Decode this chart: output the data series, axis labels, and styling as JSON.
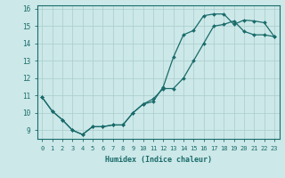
{
  "xlabel": "Humidex (Indice chaleur)",
  "background_color": "#cce8e8",
  "grid_color": "#aacccc",
  "line_color": "#1a6b6b",
  "xlim": [
    -0.5,
    23.5
  ],
  "ylim": [
    8.5,
    16.2
  ],
  "yticks": [
    9,
    10,
    11,
    12,
    13,
    14,
    15,
    16
  ],
  "xticks": [
    0,
    1,
    2,
    3,
    4,
    5,
    6,
    7,
    8,
    9,
    10,
    11,
    12,
    13,
    14,
    15,
    16,
    17,
    18,
    19,
    20,
    21,
    22,
    23
  ],
  "line1_x": [
    0,
    1,
    2,
    3,
    4,
    5,
    6,
    7,
    8,
    9,
    10,
    11,
    12,
    13,
    14,
    15,
    16,
    17,
    18,
    19,
    20,
    21,
    22,
    23
  ],
  "line1_y": [
    10.9,
    10.1,
    9.6,
    9.0,
    8.75,
    9.2,
    9.2,
    9.3,
    9.3,
    10.0,
    10.5,
    10.65,
    11.5,
    13.2,
    14.5,
    14.75,
    15.6,
    15.7,
    15.7,
    15.1,
    15.35,
    15.3,
    15.2,
    14.4
  ],
  "line2_x": [
    0,
    1,
    2,
    3,
    4,
    5,
    6,
    7,
    8,
    9,
    10,
    11,
    12,
    13,
    14,
    15,
    16,
    17,
    18,
    19,
    20,
    21,
    22,
    23
  ],
  "line2_y": [
    10.9,
    10.1,
    9.6,
    9.0,
    8.75,
    9.2,
    9.2,
    9.3,
    9.3,
    10.0,
    10.5,
    10.8,
    11.4,
    11.4,
    12.0,
    13.0,
    14.0,
    15.0,
    15.1,
    15.3,
    14.7,
    14.5,
    14.5,
    14.4
  ]
}
